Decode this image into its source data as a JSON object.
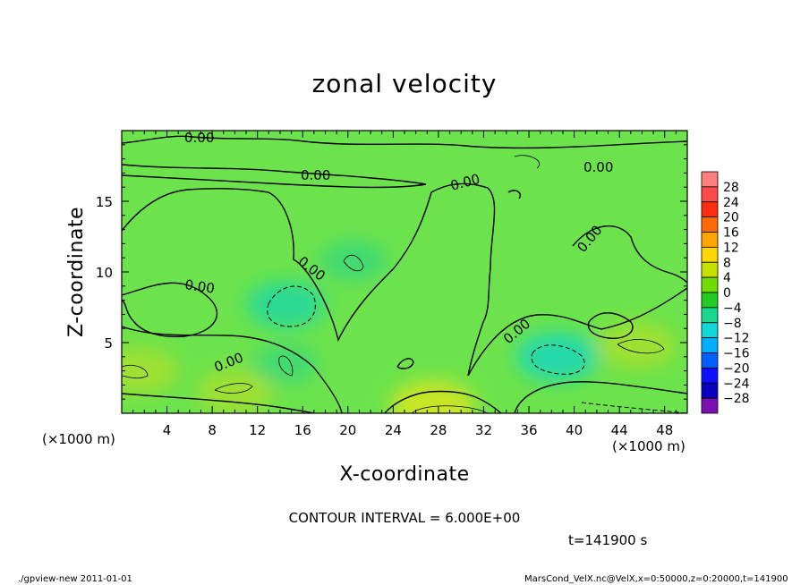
{
  "chart_data": {
    "type": "heatmap",
    "title": "zonal velocity",
    "xlabel": "X-coordinate",
    "ylabel": "Z-coordinate",
    "x_unit_label": "(×1000 m)",
    "x_unit_label_left": "(×1000 m)",
    "xlim": [
      0,
      50
    ],
    "ylim": [
      0,
      20
    ],
    "x_ticks": [
      4,
      8,
      12,
      16,
      20,
      24,
      28,
      32,
      36,
      40,
      44,
      48
    ],
    "y_ticks": [
      5,
      10,
      15
    ],
    "contour_interval_text": "CONTOUR INTERVAL = 6.000E+00",
    "time_text": "t=141900 s",
    "footer_left": "./gpview-new   2011-01-01",
    "footer_right": "MarsCond_VelX.nc@VelX,x=0:50000,z=0:20000,t=141900",
    "contour_labels": [
      "0.00",
      "0.00",
      "0.00",
      "0.00",
      "0.00",
      "0.00",
      "0.00",
      "0.00",
      "0.00"
    ],
    "colorbar": {
      "levels": [
        "28",
        "24",
        "20",
        "16",
        "12",
        "8",
        "4",
        "0",
        "−4",
        "−8",
        "−12",
        "−16",
        "−20",
        "−24",
        "−28"
      ],
      "colors": [
        "#ff7f7f",
        "#ff4a4a",
        "#ff2d10",
        "#ff6a00",
        "#ffa500",
        "#ffd700",
        "#c8e000",
        "#70dd00",
        "#22cc22",
        "#18d890",
        "#10d8d8",
        "#00b0ff",
        "#0060ff",
        "#1010ff",
        "#0a00c0",
        "#7a10b0"
      ]
    },
    "field_features": [
      {
        "x": 14.5,
        "z": 7.7,
        "value": -7
      },
      {
        "x": 38.5,
        "z": 4.0,
        "value": -8
      },
      {
        "x": 20.5,
        "z": 10.8,
        "value": -4
      },
      {
        "x": 14.5,
        "z": 3.5,
        "value": -3
      },
      {
        "x": 27.5,
        "z": 0.5,
        "value": 9
      },
      {
        "x": 45.5,
        "z": 4.8,
        "value": 7
      },
      {
        "x": 1.5,
        "z": 3.0,
        "value": 7
      },
      {
        "x": 10.0,
        "z": 1.5,
        "value": 6
      }
    ]
  }
}
